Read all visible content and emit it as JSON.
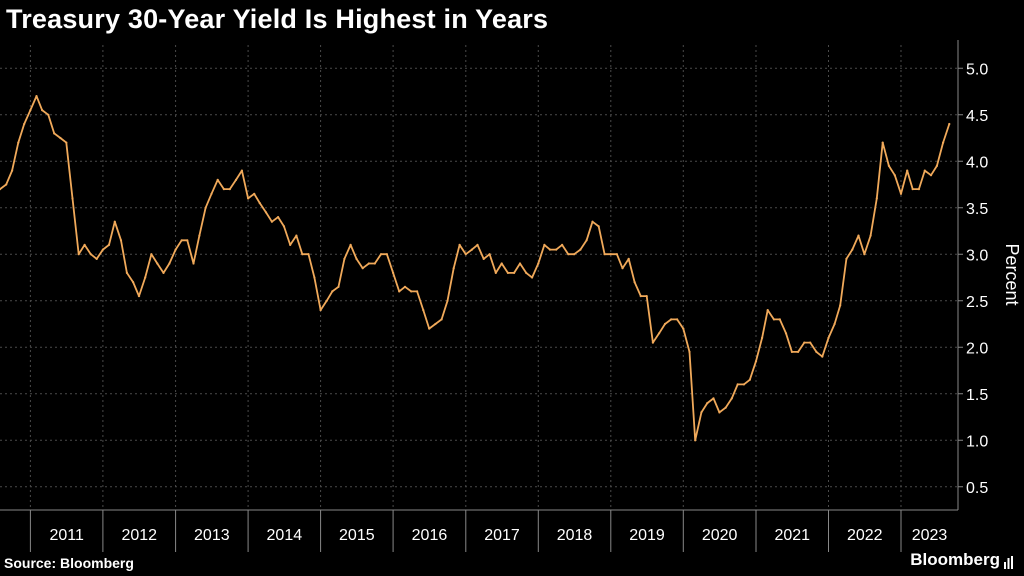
{
  "header": {
    "title": "Treasury 30-Year Yield Is Highest in Years"
  },
  "footer": {
    "source": "Source: Bloomberg",
    "brand": "Bloomberg"
  },
  "colors": {
    "background": "#000000",
    "line": "#f0a95a",
    "grid": "#4a4a4a",
    "text": "#ffffff"
  },
  "chart_data": {
    "type": "line",
    "title": "Treasury 30-Year Yield Is Highest in Years",
    "ylabel": "Percent",
    "xlabel": "",
    "ylim": [
      0.25,
      5.25
    ],
    "yticks": [
      0.5,
      1.0,
      1.5,
      2.0,
      2.5,
      3.0,
      3.5,
      4.0,
      4.5,
      5.0
    ],
    "ytick_labels": [
      "0.5",
      "1.0",
      "1.5",
      "2.0",
      "2.5",
      "3.0",
      "3.5",
      "4.0",
      "4.5",
      "5.0"
    ],
    "xlim": [
      "2010-08-01",
      "2023-10-15"
    ],
    "xtick_labels": [
      "2011",
      "2012",
      "2013",
      "2014",
      "2015",
      "2016",
      "2017",
      "2018",
      "2019",
      "2020",
      "2021",
      "2022",
      "2023"
    ],
    "grid": true,
    "y_axis_position": "right",
    "series": [
      {
        "values": [
          [
            "2010-08-01",
            3.7
          ],
          [
            "2010-09-01",
            3.75
          ],
          [
            "2010-10-01",
            3.9
          ],
          [
            "2010-11-01",
            4.2
          ],
          [
            "2010-12-01",
            4.4
          ],
          [
            "2011-01-01",
            4.55
          ],
          [
            "2011-02-01",
            4.7
          ],
          [
            "2011-03-01",
            4.55
          ],
          [
            "2011-04-01",
            4.5
          ],
          [
            "2011-05-01",
            4.3
          ],
          [
            "2011-06-01",
            4.25
          ],
          [
            "2011-07-01",
            4.2
          ],
          [
            "2011-08-01",
            3.6
          ],
          [
            "2011-09-01",
            3.0
          ],
          [
            "2011-10-01",
            3.1
          ],
          [
            "2011-11-01",
            3.0
          ],
          [
            "2011-12-01",
            2.95
          ],
          [
            "2012-01-01",
            3.05
          ],
          [
            "2012-02-01",
            3.1
          ],
          [
            "2012-03-01",
            3.35
          ],
          [
            "2012-04-01",
            3.15
          ],
          [
            "2012-05-01",
            2.8
          ],
          [
            "2012-06-01",
            2.7
          ],
          [
            "2012-07-01",
            2.55
          ],
          [
            "2012-08-01",
            2.75
          ],
          [
            "2012-09-01",
            3.0
          ],
          [
            "2012-10-01",
            2.9
          ],
          [
            "2012-11-01",
            2.8
          ],
          [
            "2012-12-01",
            2.9
          ],
          [
            "2013-01-01",
            3.05
          ],
          [
            "2013-02-01",
            3.15
          ],
          [
            "2013-03-01",
            3.15
          ],
          [
            "2013-04-01",
            2.9
          ],
          [
            "2013-05-01",
            3.2
          ],
          [
            "2013-06-01",
            3.5
          ],
          [
            "2013-07-01",
            3.65
          ],
          [
            "2013-08-01",
            3.8
          ],
          [
            "2013-09-01",
            3.7
          ],
          [
            "2013-10-01",
            3.7
          ],
          [
            "2013-11-01",
            3.8
          ],
          [
            "2013-12-01",
            3.9
          ],
          [
            "2014-01-01",
            3.6
          ],
          [
            "2014-02-01",
            3.65
          ],
          [
            "2014-03-01",
            3.55
          ],
          [
            "2014-04-01",
            3.45
          ],
          [
            "2014-05-01",
            3.35
          ],
          [
            "2014-06-01",
            3.4
          ],
          [
            "2014-07-01",
            3.3
          ],
          [
            "2014-08-01",
            3.1
          ],
          [
            "2014-09-01",
            3.2
          ],
          [
            "2014-10-01",
            3.0
          ],
          [
            "2014-11-01",
            3.0
          ],
          [
            "2014-12-01",
            2.75
          ],
          [
            "2015-01-01",
            2.4
          ],
          [
            "2015-02-01",
            2.5
          ],
          [
            "2015-03-01",
            2.6
          ],
          [
            "2015-04-01",
            2.65
          ],
          [
            "2015-05-01",
            2.95
          ],
          [
            "2015-06-01",
            3.1
          ],
          [
            "2015-07-01",
            2.95
          ],
          [
            "2015-08-01",
            2.85
          ],
          [
            "2015-09-01",
            2.9
          ],
          [
            "2015-10-01",
            2.9
          ],
          [
            "2015-11-01",
            3.0
          ],
          [
            "2015-12-01",
            3.0
          ],
          [
            "2016-01-01",
            2.8
          ],
          [
            "2016-02-01",
            2.6
          ],
          [
            "2016-03-01",
            2.65
          ],
          [
            "2016-04-01",
            2.6
          ],
          [
            "2016-05-01",
            2.6
          ],
          [
            "2016-06-01",
            2.4
          ],
          [
            "2016-07-01",
            2.2
          ],
          [
            "2016-08-01",
            2.25
          ],
          [
            "2016-09-01",
            2.3
          ],
          [
            "2016-10-01",
            2.5
          ],
          [
            "2016-11-01",
            2.85
          ],
          [
            "2016-12-01",
            3.1
          ],
          [
            "2017-01-01",
            3.0
          ],
          [
            "2017-02-01",
            3.05
          ],
          [
            "2017-03-01",
            3.1
          ],
          [
            "2017-04-01",
            2.95
          ],
          [
            "2017-05-01",
            3.0
          ],
          [
            "2017-06-01",
            2.8
          ],
          [
            "2017-07-01",
            2.9
          ],
          [
            "2017-08-01",
            2.8
          ],
          [
            "2017-09-01",
            2.8
          ],
          [
            "2017-10-01",
            2.9
          ],
          [
            "2017-11-01",
            2.8
          ],
          [
            "2017-12-01",
            2.75
          ],
          [
            "2018-01-01",
            2.9
          ],
          [
            "2018-02-01",
            3.1
          ],
          [
            "2018-03-01",
            3.05
          ],
          [
            "2018-04-01",
            3.05
          ],
          [
            "2018-05-01",
            3.1
          ],
          [
            "2018-06-01",
            3.0
          ],
          [
            "2018-07-01",
            3.0
          ],
          [
            "2018-08-01",
            3.05
          ],
          [
            "2018-09-01",
            3.15
          ],
          [
            "2018-10-01",
            3.35
          ],
          [
            "2018-11-01",
            3.3
          ],
          [
            "2018-12-01",
            3.0
          ],
          [
            "2019-01-01",
            3.0
          ],
          [
            "2019-02-01",
            3.0
          ],
          [
            "2019-03-01",
            2.85
          ],
          [
            "2019-04-01",
            2.95
          ],
          [
            "2019-05-01",
            2.7
          ],
          [
            "2019-06-01",
            2.55
          ],
          [
            "2019-07-01",
            2.55
          ],
          [
            "2019-08-01",
            2.05
          ],
          [
            "2019-09-01",
            2.15
          ],
          [
            "2019-10-01",
            2.25
          ],
          [
            "2019-11-01",
            2.3
          ],
          [
            "2019-12-01",
            2.3
          ],
          [
            "2020-01-01",
            2.2
          ],
          [
            "2020-02-01",
            1.95
          ],
          [
            "2020-03-01",
            1.0
          ],
          [
            "2020-04-01",
            1.3
          ],
          [
            "2020-05-01",
            1.4
          ],
          [
            "2020-06-01",
            1.45
          ],
          [
            "2020-07-01",
            1.3
          ],
          [
            "2020-08-01",
            1.35
          ],
          [
            "2020-09-01",
            1.45
          ],
          [
            "2020-10-01",
            1.6
          ],
          [
            "2020-11-01",
            1.6
          ],
          [
            "2020-12-01",
            1.65
          ],
          [
            "2021-01-01",
            1.85
          ],
          [
            "2021-02-01",
            2.1
          ],
          [
            "2021-03-01",
            2.4
          ],
          [
            "2021-04-01",
            2.3
          ],
          [
            "2021-05-01",
            2.3
          ],
          [
            "2021-06-01",
            2.15
          ],
          [
            "2021-07-01",
            1.95
          ],
          [
            "2021-08-01",
            1.95
          ],
          [
            "2021-09-01",
            2.05
          ],
          [
            "2021-10-01",
            2.05
          ],
          [
            "2021-11-01",
            1.95
          ],
          [
            "2021-12-01",
            1.9
          ],
          [
            "2022-01-01",
            2.1
          ],
          [
            "2022-02-01",
            2.25
          ],
          [
            "2022-03-01",
            2.45
          ],
          [
            "2022-04-01",
            2.95
          ],
          [
            "2022-05-01",
            3.05
          ],
          [
            "2022-06-01",
            3.2
          ],
          [
            "2022-07-01",
            3.0
          ],
          [
            "2022-08-01",
            3.2
          ],
          [
            "2022-09-01",
            3.6
          ],
          [
            "2022-10-01",
            4.2
          ],
          [
            "2022-11-01",
            3.95
          ],
          [
            "2022-12-01",
            3.85
          ],
          [
            "2023-01-01",
            3.65
          ],
          [
            "2023-02-01",
            3.9
          ],
          [
            "2023-03-01",
            3.7
          ],
          [
            "2023-04-01",
            3.7
          ],
          [
            "2023-05-01",
            3.9
          ],
          [
            "2023-06-01",
            3.85
          ],
          [
            "2023-07-01",
            3.95
          ],
          [
            "2023-08-01",
            4.2
          ],
          [
            "2023-09-01",
            4.4
          ]
        ]
      }
    ]
  }
}
